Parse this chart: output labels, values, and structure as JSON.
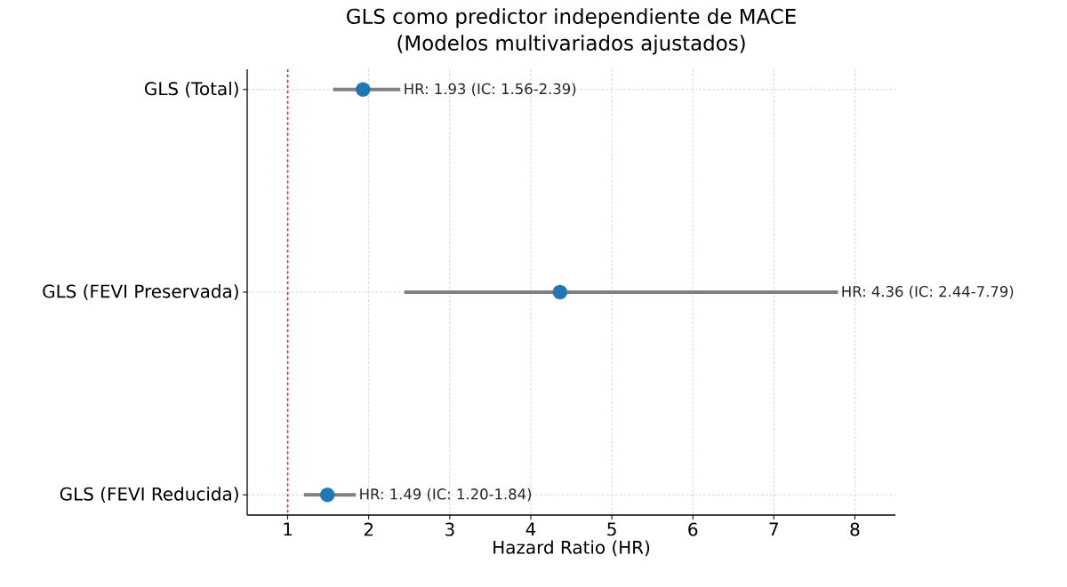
{
  "chart_data": {
    "type": "scatter",
    "orientation": "horizontal",
    "title": "GLS como predictor independiente de MACE",
    "subtitle": "(Modelos multivariados ajustados)",
    "xlabel": "Hazard Ratio (HR)",
    "categories": [
      "GLS (Total)",
      "GLS (FEVI Preservada)",
      "GLS (FEVI Reducida)"
    ],
    "values": [
      1.93,
      4.36,
      1.49
    ],
    "errors": [
      [
        1.56,
        2.39
      ],
      [
        2.44,
        7.79
      ],
      [
        1.2,
        1.84
      ]
    ],
    "annotations": [
      {
        "text": "HR: 1.93 (IC: 1.56-2.39)",
        "x": 2.39,
        "y": "GLS (Total)"
      },
      {
        "text": "HR: 4.36 (IC: 2.44-7.79)",
        "x": 7.79,
        "y": "GLS (FEVI Preservada)"
      },
      {
        "text": "HR: 1.49 (IC: 1.20-1.84)",
        "x": 1.84,
        "y": "GLS (FEVI Reducida)"
      }
    ],
    "color": "#1f77b4",
    "marker": "circle",
    "xlim": [
      0.5,
      8.5
    ],
    "xticks": [
      1,
      2,
      3,
      4,
      5,
      6,
      7,
      8
    ],
    "ref_lines": [
      {
        "axis": "x",
        "value": 1,
        "color": "#e8221c",
        "line_style": "dashed"
      }
    ],
    "grid": true,
    "legend": false
  }
}
